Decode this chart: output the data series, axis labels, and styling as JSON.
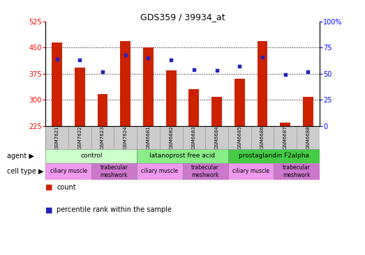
{
  "title": "GDS359 / 39934_at",
  "samples": [
    "GSM7621",
    "GSM7622",
    "GSM7623",
    "GSM7624",
    "GSM6681",
    "GSM6682",
    "GSM6683",
    "GSM6684",
    "GSM6685",
    "GSM6686",
    "GSM6687",
    "GSM6688"
  ],
  "counts": [
    465,
    392,
    316,
    468,
    450,
    385,
    330,
    308,
    360,
    468,
    235,
    308
  ],
  "percentiles": [
    64,
    63,
    52,
    68,
    65,
    63,
    54,
    53,
    57,
    66,
    49,
    52
  ],
  "ylim_left": [
    225,
    525
  ],
  "ylim_right": [
    0,
    100
  ],
  "yticks_left": [
    225,
    300,
    375,
    450,
    525
  ],
  "yticks_right": [
    0,
    25,
    50,
    75,
    100
  ],
  "bar_color": "#cc2200",
  "dot_color": "#2222bb",
  "bar_bottom": 225,
  "agent_groups": [
    {
      "label": "control",
      "start": 0,
      "end": 4,
      "color": "#ccffcc"
    },
    {
      "label": "latanoprost free acid",
      "start": 4,
      "end": 8,
      "color": "#88ee88"
    },
    {
      "label": "prostaglandin F2alpha",
      "start": 8,
      "end": 12,
      "color": "#44cc44"
    }
  ],
  "cell_type_groups": [
    {
      "label": "ciliary muscle",
      "start": 0,
      "end": 2,
      "color": "#ee99ee"
    },
    {
      "label": "trabecular\nmeshwork",
      "start": 2,
      "end": 4,
      "color": "#cc77cc"
    },
    {
      "label": "ciliary muscle",
      "start": 4,
      "end": 6,
      "color": "#ee99ee"
    },
    {
      "label": "trabecular\nmeshwork",
      "start": 6,
      "end": 8,
      "color": "#cc77cc"
    },
    {
      "label": "ciliary muscle",
      "start": 8,
      "end": 10,
      "color": "#ee99ee"
    },
    {
      "label": "trabecular\nmeshwork",
      "start": 10,
      "end": 12,
      "color": "#cc77cc"
    }
  ],
  "legend_items": [
    {
      "label": "count",
      "color": "#cc2200"
    },
    {
      "label": "percentile rank within the sample",
      "color": "#2222bb"
    }
  ]
}
